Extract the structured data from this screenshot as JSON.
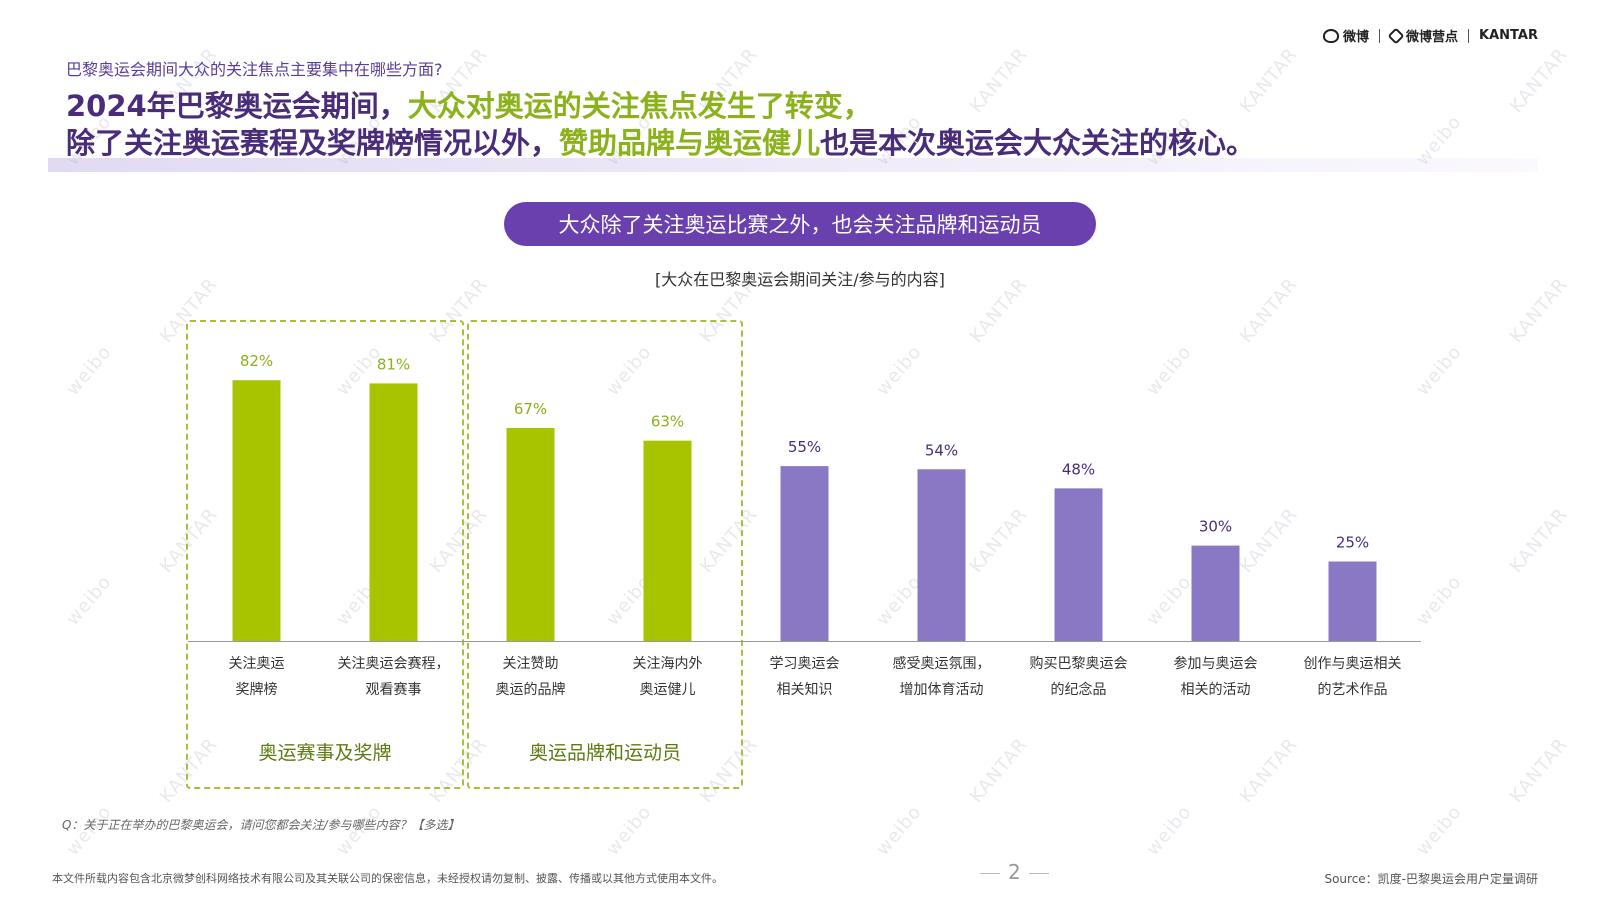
{
  "header": {
    "logos": [
      "微博",
      "微博营点",
      "KANTAR"
    ],
    "question": "巴黎奥运会期间大众的关注焦点主要集中在哪些方面?",
    "headline_line1_a": "2024年巴黎奥运会期间，",
    "headline_line1_b": "大众对奥运的关注焦点发生了转变，",
    "headline_line2_a": "除了关注奥运赛程及奖牌榜情况以外，",
    "headline_line2_b": "赞助品牌与奥运健儿",
    "headline_line2_c": "也是本次奥运会大众关注的核心。"
  },
  "pill_text": "大众除了关注奥运比赛之外，也会关注品牌和运动员",
  "watermark": {
    "a": "weibo",
    "b": "KANTAR"
  },
  "chart_data": {
    "type": "bar",
    "title": "[大众在巴黎奥运会期间关注/参与的内容]",
    "categories": [
      [
        "关注奥运",
        "奖牌榜"
      ],
      [
        "关注奥运会赛程，",
        "观看赛事"
      ],
      [
        "关注赞助",
        "奥运的品牌"
      ],
      [
        "关注海内外",
        "奥运健儿"
      ],
      [
        "学习奥运会",
        "相关知识"
      ],
      [
        "感受奥运氛围，",
        "增加体育活动"
      ],
      [
        "购买巴黎奥运会",
        "的纪念品"
      ],
      [
        "参加与奥运会",
        "相关的活动"
      ],
      [
        "创作与奥运相关",
        "的艺术作品"
      ]
    ],
    "values": [
      82,
      81,
      67,
      63,
      55,
      54,
      48,
      30,
      25
    ],
    "value_labels": [
      "82%",
      "81%",
      "67%",
      "63%",
      "55%",
      "54%",
      "48%",
      "30%",
      "25%"
    ],
    "highlight_count": 4,
    "colors": {
      "highlight": "#a8c300",
      "default": "#8b78c4",
      "label_highlight": "#8bb21a",
      "label_default": "#4a2d7a"
    },
    "ylim": [
      0,
      100
    ],
    "groups": [
      {
        "label": "奥运赛事及奖牌",
        "members": [
          0,
          1
        ]
      },
      {
        "label": "奥运品牌和运动员",
        "members": [
          2,
          3
        ]
      }
    ]
  },
  "footer": {
    "question_note": "Q：关于正在举办的巴黎奥运会，请问您都会关注/参与哪些内容？【多选】",
    "confidential": "本文件所载内容包含北京微梦创科网络技术有限公司及其关联公司的保密信息，未经授权请勿复制、披露、传播或以其他方式使用本文件。",
    "page_number": "2",
    "source": "Source：凯度-巴黎奥运会用户定量调研"
  }
}
